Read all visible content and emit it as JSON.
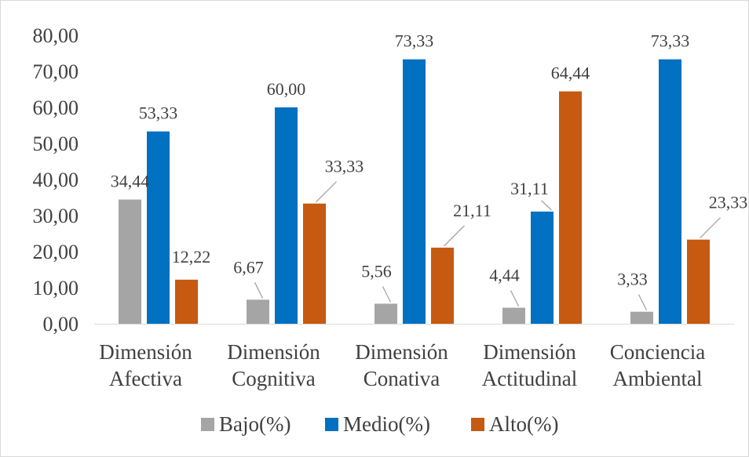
{
  "chart_data": {
    "type": "bar",
    "title": "",
    "xlabel": "",
    "ylabel": "",
    "ylim": [
      0,
      80
    ],
    "y_ticks": [
      "0,00",
      "10,00",
      "20,00",
      "30,00",
      "40,00",
      "50,00",
      "60,00",
      "70,00",
      "80,00"
    ],
    "grid": false,
    "legend_position": "bottom",
    "categories": [
      [
        "Dimensión",
        "Afectiva"
      ],
      [
        "Dimensión",
        "Cognitiva"
      ],
      [
        "Dimensión",
        "Conativa"
      ],
      [
        "Dimensión",
        "Actitudinal"
      ],
      [
        "Conciencia",
        "Ambiental"
      ]
    ],
    "series": [
      {
        "name": "Bajo(%)",
        "color": "#a5a5a5",
        "values": [
          34.44,
          6.67,
          5.56,
          4.44,
          3.33
        ],
        "labels": [
          "34,44",
          "6,67",
          "5,56",
          "4,44",
          "3,33"
        ]
      },
      {
        "name": "Medio(%)",
        "color": "#0070c0",
        "values": [
          53.33,
          60.0,
          73.33,
          31.11,
          73.33
        ],
        "labels": [
          "53,33",
          "60,00",
          "73,33",
          "31,11",
          "73,33"
        ]
      },
      {
        "name": "Alto(%)",
        "color": "#c55a11",
        "values": [
          12.22,
          33.33,
          21.11,
          64.44,
          23.33
        ],
        "labels": [
          "12,22",
          "33,33",
          "21,11",
          "64,44",
          "23,33"
        ]
      }
    ]
  }
}
